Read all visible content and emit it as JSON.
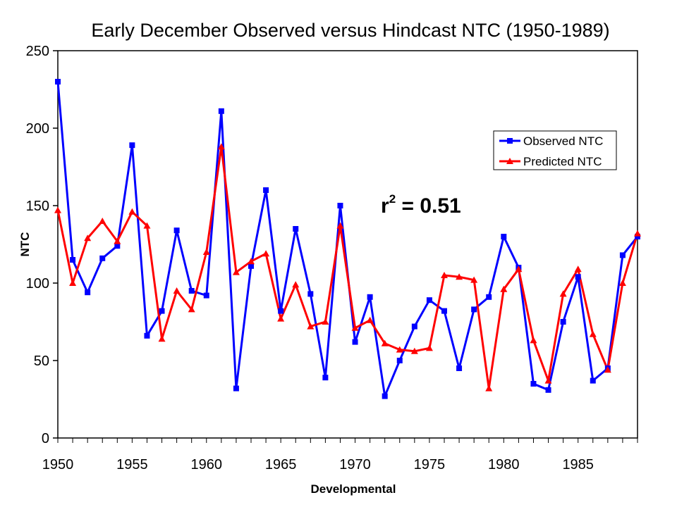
{
  "chart_data": {
    "type": "line",
    "title": "Early December Observed versus Hindcast NTC (1950-1989)",
    "xlabel": "Developmental",
    "ylabel": "NTC",
    "xlim": [
      1950,
      1989
    ],
    "ylim": [
      0,
      250
    ],
    "x_ticks": [
      "1950",
      "1955",
      "1960",
      "1965",
      "1970",
      "1975",
      "1980",
      "1985"
    ],
    "y_ticks": [
      "0",
      "50",
      "100",
      "150",
      "200",
      "250"
    ],
    "grid": false,
    "legend_position": "top-right",
    "annotation": {
      "base": "r",
      "sup": "2",
      "rest": " = 0.51"
    },
    "x": [
      1950,
      1951,
      1952,
      1953,
      1954,
      1955,
      1956,
      1957,
      1958,
      1959,
      1960,
      1961,
      1962,
      1963,
      1964,
      1965,
      1966,
      1967,
      1968,
      1969,
      1970,
      1971,
      1972,
      1973,
      1974,
      1975,
      1976,
      1977,
      1978,
      1979,
      1980,
      1981,
      1982,
      1983,
      1984,
      1985,
      1986,
      1987,
      1988,
      1989
    ],
    "series": [
      {
        "name": "Observed NTC",
        "color": "#0000ff",
        "marker": "square",
        "values": [
          230,
          115,
          94,
          116,
          124,
          189,
          66,
          82,
          134,
          95,
          92,
          211,
          32,
          111,
          160,
          82,
          135,
          93,
          39,
          150,
          62,
          91,
          27,
          50,
          72,
          89,
          82,
          45,
          83,
          91,
          130,
          110,
          35,
          31,
          75,
          104,
          37,
          45,
          118,
          130
        ]
      },
      {
        "name": "Predicted NTC",
        "color": "#ff0000",
        "marker": "triangle",
        "values": [
          147,
          100,
          129,
          140,
          127,
          146,
          137,
          64,
          95,
          83,
          120,
          188,
          107,
          114,
          119,
          77,
          99,
          72,
          75,
          137,
          71,
          76,
          61,
          57,
          56,
          58,
          105,
          104,
          102,
          32,
          96,
          109,
          63,
          37,
          93,
          109,
          67,
          44,
          100,
          132
        ]
      }
    ]
  }
}
